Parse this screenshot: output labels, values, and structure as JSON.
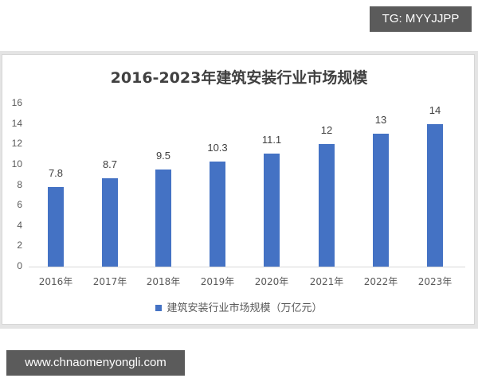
{
  "watermarks": {
    "top_right": "TG: MYYJJPP",
    "bottom_left": "www.chnaomenyongli.com"
  },
  "colors": {
    "bar": "#4472c4",
    "badge_bg": "#5b5b5b",
    "frame_bg": "#e4e4e4"
  },
  "chart_data": {
    "type": "bar",
    "title": "2016-2023年建筑安装行业市场规模",
    "categories": [
      "2016年",
      "2017年",
      "2018年",
      "2019年",
      "2020年",
      "2021年",
      "2022年",
      "2023年"
    ],
    "series": [
      {
        "name": "建筑安装行业市场规模（万亿元）",
        "values": [
          7.8,
          8.7,
          9.5,
          10.3,
          11.1,
          12,
          13,
          14
        ],
        "labels": [
          "7.8",
          "8.7",
          "9.5",
          "10.3",
          "11.1",
          "12",
          "13",
          "14"
        ]
      }
    ],
    "xlabel": "",
    "ylabel": "",
    "ylim": [
      0,
      16
    ],
    "yticks": [
      "0",
      "2",
      "4",
      "6",
      "8",
      "10",
      "12",
      "14",
      "16"
    ],
    "grid": false,
    "legend_position": "bottom"
  }
}
